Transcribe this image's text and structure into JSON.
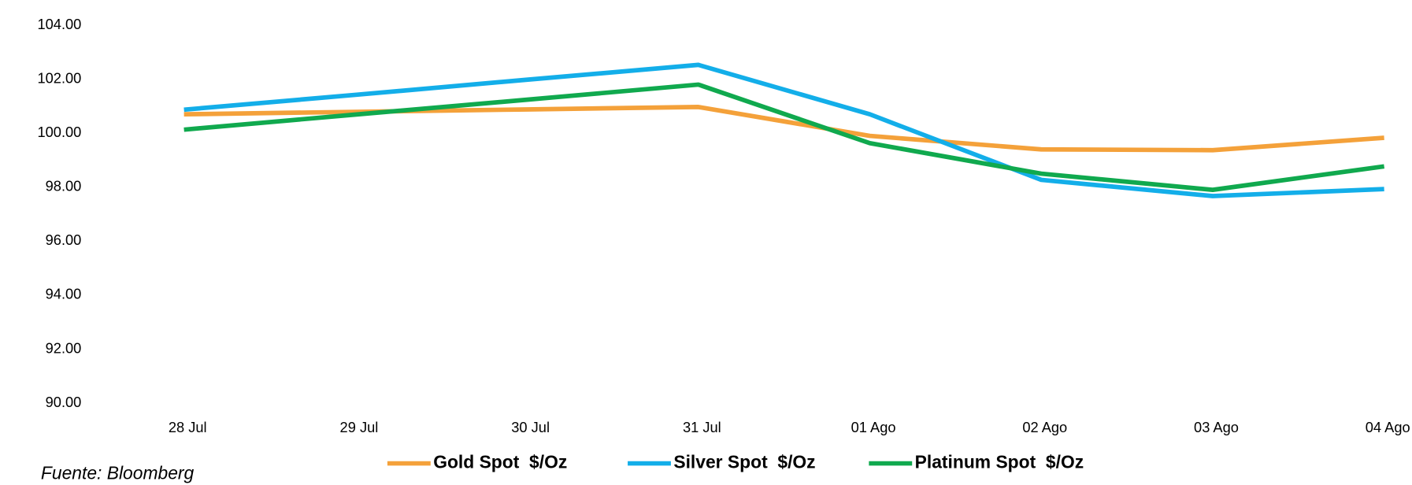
{
  "chart_data": {
    "type": "line",
    "categories": [
      "28 Jul",
      "29 Jul",
      "30 Jul",
      "31 Jul",
      "01 Ago",
      "02 Ago",
      "03 Ago",
      "04 Ago"
    ],
    "series": [
      {
        "name": "Gold Spot  $/Oz",
        "color": "#f4a13a",
        "values": [
          100.7,
          100.79,
          100.88,
          100.97,
          99.9,
          99.4,
          99.37,
          99.83
        ]
      },
      {
        "name": "Silver Spot  $/Oz",
        "color": "#13aee9",
        "values": [
          100.87,
          101.42,
          101.98,
          102.53,
          100.7,
          98.27,
          97.67,
          97.93
        ]
      },
      {
        "name": "Platinum Spot  $/Oz",
        "color": "#10a94e",
        "values": [
          100.13,
          100.69,
          101.24,
          101.8,
          99.63,
          98.5,
          97.9,
          98.77
        ]
      }
    ],
    "ylim": [
      90,
      104
    ],
    "yticks": [
      {
        "value": 90,
        "label": "90.00"
      },
      {
        "value": 92,
        "label": "92.00"
      },
      {
        "value": 94,
        "label": "94.00"
      },
      {
        "value": 96,
        "label": "96.00"
      },
      {
        "value": 98,
        "label": "98.00"
      },
      {
        "value": 100,
        "label": "100.00"
      },
      {
        "value": 102,
        "label": "102.00"
      },
      {
        "value": 104,
        "label": "104.00"
      }
    ],
    "grid": false,
    "source": "Fuente: Bloomberg"
  }
}
